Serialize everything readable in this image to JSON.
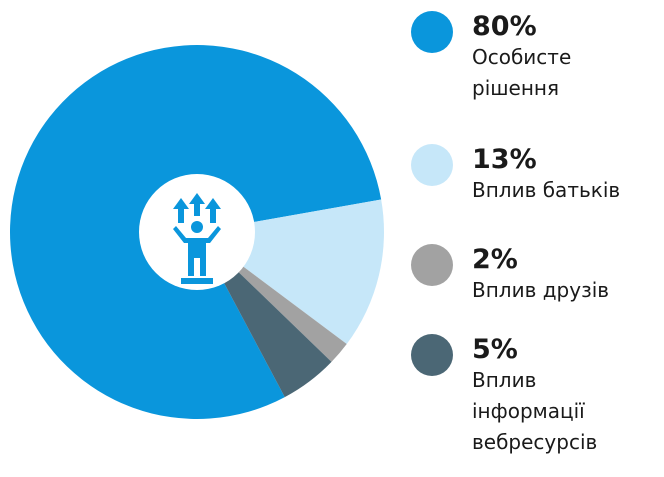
{
  "chart_data": {
    "type": "pie",
    "categories": [
      "Особисте рішення",
      "Вплив батьків",
      "Вплив друзів",
      "Вплив інформації вебресурсів"
    ],
    "values": [
      80,
      13,
      2,
      5
    ],
    "value_labels": [
      "80%",
      "13%",
      "2%",
      "5%"
    ],
    "colors": [
      "#0a96dc",
      "#c6e7f9",
      "#a2a2a2",
      "#4b6775"
    ]
  }
}
